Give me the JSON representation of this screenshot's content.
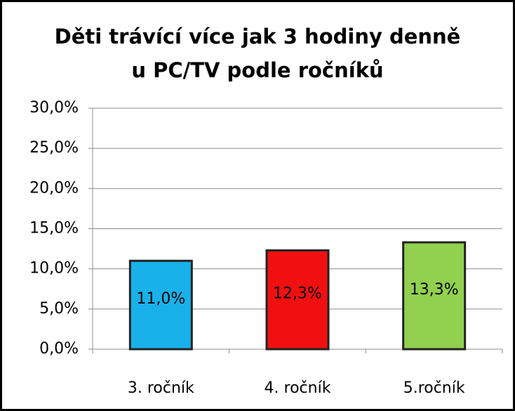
{
  "chart_data": {
    "type": "bar",
    "title": [
      "Děti trávící více jak 3 hodiny denně",
      "u PC/TV podle ročníků"
    ],
    "categories": [
      "3. ročník",
      "4. ročník",
      "5.ročník"
    ],
    "values": [
      11.0,
      12.3,
      13.3
    ],
    "value_labels": [
      "11,0%",
      "12,3%",
      "13,3%"
    ],
    "colors": [
      "#19b1ea",
      "#f01010",
      "#92d050"
    ],
    "ylim": [
      0,
      30
    ],
    "yticks": [
      {
        "value": 0,
        "label": "0,0%"
      },
      {
        "value": 5,
        "label": "5,0%"
      },
      {
        "value": 10,
        "label": "10,0%"
      },
      {
        "value": 15,
        "label": "15,0%"
      },
      {
        "value": 20,
        "label": "20,0%"
      },
      {
        "value": 25,
        "label": "25,0%"
      },
      {
        "value": 30,
        "label": "30,0%"
      }
    ],
    "grid": true
  }
}
